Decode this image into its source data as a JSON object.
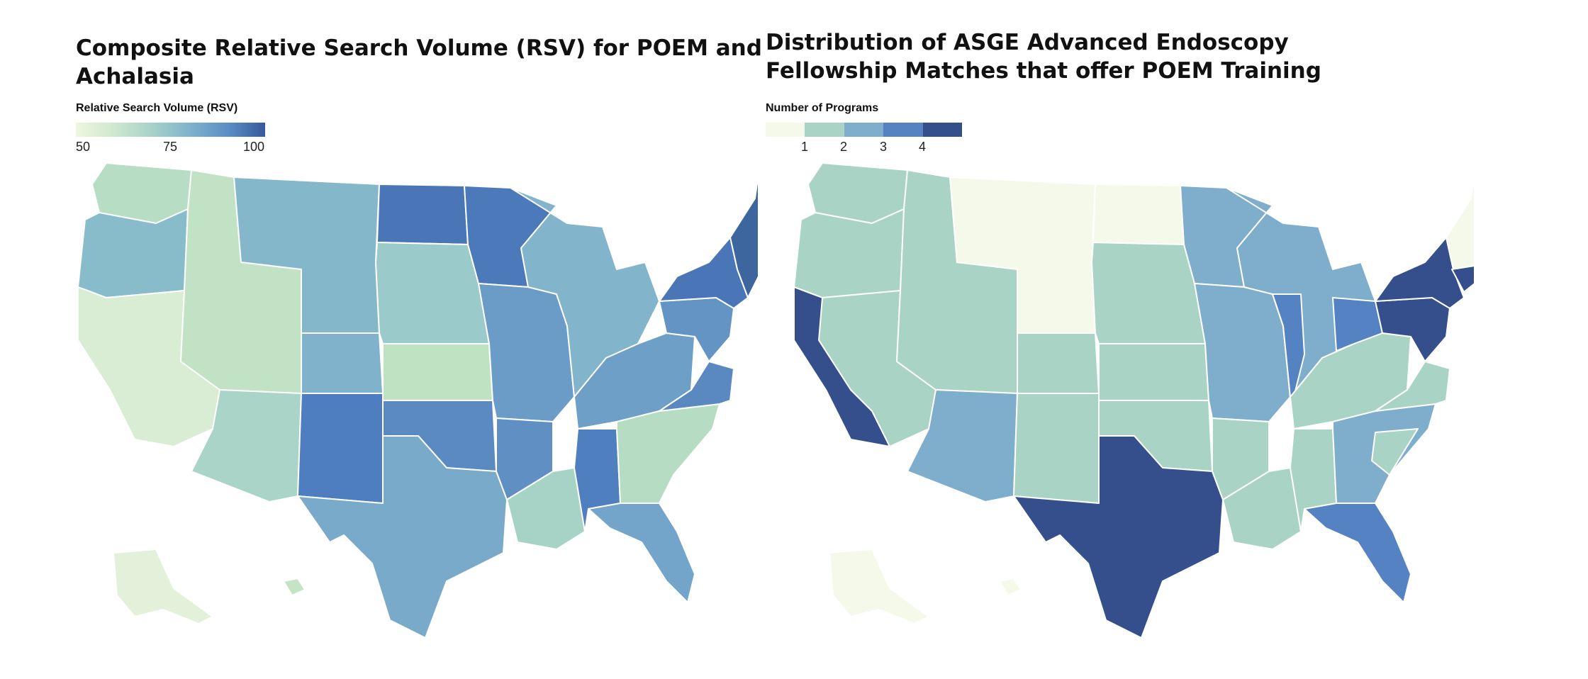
{
  "left_map": {
    "title_line1": "Composite Relative Search Volume (RSV) for POEM and",
    "title_line2": "Achalasia",
    "legend_title": "Relative Search Volume (RSV)",
    "legend_ticks": [
      "50",
      "75",
      "100"
    ],
    "legend_gradient": [
      "#eef6df",
      "#cfe8cf",
      "#a7d2c9",
      "#7fb3cc",
      "#5b8fc6",
      "#355a9e"
    ],
    "regions": [
      {
        "name": "region-pacific-northwest",
        "color": "#b7ddc4"
      },
      {
        "name": "region-oregon",
        "color": "#88bccb"
      },
      {
        "name": "region-california-nevada",
        "color": "#d9ecd4"
      },
      {
        "name": "region-idaho-utah",
        "color": "#c1e2c5"
      },
      {
        "name": "region-arizona",
        "color": "#a9d4c7"
      },
      {
        "name": "region-montana-wyoming",
        "color": "#85b7ca"
      },
      {
        "name": "region-colorado",
        "color": "#80b2cb"
      },
      {
        "name": "region-new-mexico",
        "color": "#4e7ebf"
      },
      {
        "name": "region-north-dakota",
        "color": "#4a76b8"
      },
      {
        "name": "region-plains",
        "color": "#9acac9"
      },
      {
        "name": "region-kansas",
        "color": "#bfe2c3"
      },
      {
        "name": "region-oklahoma",
        "color": "#5b8ac2"
      },
      {
        "name": "region-texas",
        "color": "#79aaca"
      },
      {
        "name": "region-minnesota",
        "color": "#4c79ba"
      },
      {
        "name": "region-iowa-missouri",
        "color": "#6b9cc7"
      },
      {
        "name": "region-arkansas",
        "color": "#5f8fc3"
      },
      {
        "name": "region-louisiana-mississippi",
        "color": "#a7d3c7"
      },
      {
        "name": "region-great-lakes",
        "color": "#82b5cb"
      },
      {
        "name": "region-ohio-valley",
        "color": "#6e9fc7"
      },
      {
        "name": "region-alabama",
        "color": "#4f7fbe"
      },
      {
        "name": "region-georgia-carolinas",
        "color": "#b6dcc4"
      },
      {
        "name": "region-florida",
        "color": "#72a5c9"
      },
      {
        "name": "region-virginia",
        "color": "#5a89c2"
      },
      {
        "name": "region-pennsylvania",
        "color": "#6494c4"
      },
      {
        "name": "region-new-york",
        "color": "#4a76b8"
      },
      {
        "name": "region-new-england",
        "color": "#3d669f"
      },
      {
        "name": "region-alaska",
        "color": "#e3f1da"
      },
      {
        "name": "region-hawaii",
        "color": "#c5e4c4"
      }
    ]
  },
  "right_map": {
    "title_line1": "Distribution of ASGE Advanced Endoscopy",
    "title_line2": "Fellowship Matches that offer POEM Training",
    "legend_title": "Number of Programs",
    "legend_ticks": [
      "1",
      "2",
      "3",
      "4"
    ],
    "legend_steps": [
      "#f4f9ea",
      "#a9d4c5",
      "#7fadcc",
      "#5582c2",
      "#354f8c"
    ],
    "regions": [
      {
        "name": "region-pacific-northwest",
        "color": "#a9d4c5"
      },
      {
        "name": "region-oregon",
        "color": "#a9d4c5"
      },
      {
        "name": "region-california-nevada",
        "color": "#a9d4c5"
      },
      {
        "name": "region-california",
        "color": "#354f8c"
      },
      {
        "name": "region-idaho-utah",
        "color": "#a9d4c5"
      },
      {
        "name": "region-arizona",
        "color": "#7fadcc"
      },
      {
        "name": "region-montana-wyoming",
        "color": "#f4f9ea"
      },
      {
        "name": "region-colorado",
        "color": "#a9d4c5"
      },
      {
        "name": "region-new-mexico",
        "color": "#a9d4c5"
      },
      {
        "name": "region-north-dakota",
        "color": "#f4f9ea"
      },
      {
        "name": "region-plains",
        "color": "#a9d4c5"
      },
      {
        "name": "region-kansas",
        "color": "#a9d4c5"
      },
      {
        "name": "region-oklahoma",
        "color": "#a9d4c5"
      },
      {
        "name": "region-texas",
        "color": "#354f8c"
      },
      {
        "name": "region-minnesota",
        "color": "#7fadcc"
      },
      {
        "name": "region-iowa-missouri",
        "color": "#7fadcc"
      },
      {
        "name": "region-arkansas",
        "color": "#a9d4c5"
      },
      {
        "name": "region-louisiana-mississippi",
        "color": "#a9d4c5"
      },
      {
        "name": "region-great-lakes",
        "color": "#7fadcc"
      },
      {
        "name": "region-illinois",
        "color": "#5582c2"
      },
      {
        "name": "region-ohio-valley",
        "color": "#a9d4c5"
      },
      {
        "name": "region-ohio",
        "color": "#5582c2"
      },
      {
        "name": "region-alabama",
        "color": "#a9d4c5"
      },
      {
        "name": "region-georgia-carolinas",
        "color": "#7fadcc"
      },
      {
        "name": "region-south-carolina",
        "color": "#a9d4c5"
      },
      {
        "name": "region-florida",
        "color": "#5582c2"
      },
      {
        "name": "region-virginia",
        "color": "#a9d4c5"
      },
      {
        "name": "region-pennsylvania",
        "color": "#354f8c"
      },
      {
        "name": "region-new-york",
        "color": "#354f8c"
      },
      {
        "name": "region-new-england",
        "color": "#f4f9ea"
      },
      {
        "name": "region-massachusetts",
        "color": "#354f8c"
      },
      {
        "name": "region-alaska",
        "color": "#f4f9ea"
      },
      {
        "name": "region-hawaii",
        "color": "#f4f9ea"
      }
    ]
  }
}
